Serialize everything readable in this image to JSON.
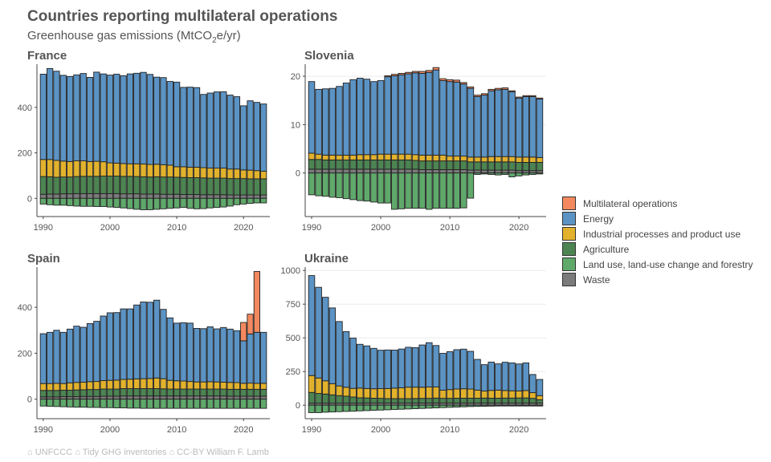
{
  "title": "Countries reporting multilateral operations",
  "subtitle_prefix": "Greenhouse gas emissions (MtCO",
  "subtitle_sub": "2",
  "subtitle_suffix": "e/yr)",
  "caption": "⌂ UNFCCC ⌂ Tidy GHG inventories ⌂ CC-BY William F. Lamb",
  "colors": {
    "Multilateral operations": "#F4895F",
    "Energy": "#5B93C4",
    "Industrial processes and product use": "#E2B22D",
    "Agriculture": "#4C8452",
    "Land use, land-use change and forestry": "#5FA96B",
    "Waste": "#7B7B7B"
  },
  "legend": [
    "Multilateral operations",
    "Energy",
    "Industrial processes and product use",
    "Agriculture",
    "Land use, land-use change and forestry",
    "Waste"
  ],
  "chart_data": [
    {
      "type": "bar",
      "stacked": true,
      "title": "France",
      "x_start": 1990,
      "xticks": [
        1990,
        2000,
        2010,
        2020
      ],
      "yticks": [
        0,
        200,
        400
      ],
      "ylim": [
        -80,
        590
      ],
      "grid": false,
      "series": [
        {
          "name": "Waste",
          "values": [
            18,
            19,
            19,
            20,
            20,
            21,
            21,
            21,
            21,
            21,
            21,
            21,
            20,
            20,
            20,
            19,
            19,
            19,
            18,
            18,
            18,
            17,
            17,
            17,
            16,
            16,
            16,
            16,
            15,
            15,
            15,
            15,
            15,
            15
          ]
        },
        {
          "name": "Agriculture",
          "values": [
            78,
            76,
            74,
            74,
            74,
            75,
            76,
            76,
            76,
            77,
            77,
            77,
            77,
            77,
            76,
            76,
            75,
            76,
            76,
            76,
            75,
            75,
            74,
            74,
            74,
            73,
            73,
            73,
            72,
            72,
            72,
            71,
            71,
            71
          ]
        },
        {
          "name": "Industrial processes and product use",
          "values": [
            75,
            76,
            74,
            70,
            68,
            69,
            68,
            65,
            66,
            63,
            58,
            57,
            56,
            55,
            56,
            56,
            55,
            55,
            54,
            52,
            46,
            47,
            46,
            46,
            45,
            44,
            44,
            44,
            42,
            42,
            38,
            38,
            36,
            33
          ]
        },
        {
          "name": "Energy",
          "values": [
            375,
            400,
            392,
            377,
            374,
            378,
            384,
            370,
            392,
            386,
            386,
            391,
            386,
            395,
            398,
            403,
            396,
            383,
            383,
            368,
            372,
            349,
            352,
            350,
            322,
            330,
            335,
            336,
            325,
            318,
            282,
            305,
            300,
            296
          ]
        },
        {
          "name": "Multilateral operations",
          "values": [
            0,
            0,
            0,
            0,
            0,
            0,
            0,
            0,
            0,
            0,
            0,
            0,
            0,
            0,
            0,
            0,
            0,
            0,
            0,
            0,
            0,
            0,
            0,
            0,
            0,
            0,
            0,
            0,
            0,
            0,
            0,
            0,
            0,
            0
          ]
        },
        {
          "name": "Land use, land-use change and forestry",
          "values": [
            -25,
            -28,
            -30,
            -30,
            -32,
            -34,
            -35,
            -35,
            -36,
            -36,
            -38,
            -40,
            -42,
            -45,
            -48,
            -50,
            -50,
            -48,
            -46,
            -44,
            -42,
            -40,
            -44,
            -46,
            -45,
            -42,
            -40,
            -38,
            -34,
            -28,
            -25,
            -22,
            -20,
            -20
          ]
        }
      ]
    },
    {
      "type": "bar",
      "stacked": true,
      "title": "Slovenia",
      "x_start": 1990,
      "xticks": [
        1990,
        2000,
        2010,
        2020
      ],
      "yticks": [
        0,
        10,
        20
      ],
      "ylim": [
        -9,
        22.5
      ],
      "grid": true,
      "series": [
        {
          "name": "Waste",
          "values": [
            0.8,
            0.8,
            0.8,
            0.8,
            0.8,
            0.8,
            0.8,
            0.8,
            0.8,
            0.8,
            0.8,
            0.8,
            0.8,
            0.8,
            0.8,
            0.8,
            0.7,
            0.7,
            0.7,
            0.7,
            0.7,
            0.7,
            0.7,
            0.6,
            0.6,
            0.6,
            0.6,
            0.6,
            0.6,
            0.6,
            0.5,
            0.5,
            0.5,
            0.5
          ]
        },
        {
          "name": "Agriculture",
          "values": [
            2.0,
            2.0,
            1.9,
            1.9,
            1.9,
            1.9,
            1.9,
            1.9,
            1.9,
            1.9,
            1.9,
            1.9,
            1.9,
            1.9,
            1.9,
            1.8,
            1.8,
            1.8,
            1.8,
            1.8,
            1.8,
            1.8,
            1.8,
            1.7,
            1.7,
            1.7,
            1.7,
            1.7,
            1.7,
            1.7,
            1.7,
            1.7,
            1.7,
            1.7
          ]
        },
        {
          "name": "Industrial processes and product use",
          "values": [
            1.3,
            1.1,
            1.0,
            1.0,
            1.0,
            1.0,
            1.0,
            1.1,
            1.1,
            1.1,
            1.2,
            1.2,
            1.2,
            1.2,
            1.2,
            1.2,
            1.2,
            1.2,
            1.2,
            1.2,
            1.0,
            1.0,
            1.0,
            1.0,
            1.0,
            1.0,
            1.1,
            1.1,
            1.1,
            1.1,
            1.1,
            1.1,
            1.1,
            1.0
          ]
        },
        {
          "name": "Energy",
          "values": [
            14.8,
            13.4,
            13.7,
            13.8,
            14.2,
            14.9,
            15.6,
            15.8,
            15.6,
            15.1,
            15.2,
            16.0,
            16.2,
            16.4,
            16.6,
            16.9,
            16.9,
            17.1,
            17.6,
            15.4,
            15.4,
            15.3,
            14.9,
            14.2,
            12.5,
            12.8,
            13.6,
            13.8,
            13.9,
            13.4,
            12.2,
            12.5,
            12.5,
            12.1
          ]
        },
        {
          "name": "Multilateral operations",
          "values": [
            0,
            0,
            0,
            0,
            0,
            0,
            0,
            0,
            0,
            0,
            0,
            0.2,
            0.3,
            0.3,
            0.3,
            0.3,
            0.4,
            0.4,
            0.5,
            0.4,
            0.4,
            0.4,
            0.3,
            0.3,
            0.3,
            0.3,
            0.3,
            0.3,
            0.3,
            0.2,
            0.2,
            0.2,
            0.2,
            0.2
          ]
        },
        {
          "name": "Land use, land-use change and forestry",
          "values": [
            -4.5,
            -4.7,
            -4.8,
            -5.0,
            -5.1,
            -5.3,
            -5.5,
            -5.7,
            -5.8,
            -6.0,
            -6.2,
            -6.2,
            -7.5,
            -7.4,
            -7.3,
            -7.3,
            -7.3,
            -7.5,
            -7.3,
            -7.3,
            -7.3,
            -7.3,
            -7.2,
            -5.2,
            -0.3,
            -0.2,
            -0.3,
            -0.4,
            -0.3,
            -0.8,
            -0.6,
            -0.4,
            -0.3,
            -0.2
          ]
        }
      ]
    },
    {
      "type": "bar",
      "stacked": true,
      "title": "Spain",
      "x_start": 1990,
      "xticks": [
        1990,
        2000,
        2010,
        2020
      ],
      "yticks": [
        0,
        200,
        400
      ],
      "ylim": [
        -85,
        575
      ],
      "grid": false,
      "series": [
        {
          "name": "Waste",
          "values": [
            10,
            10,
            10,
            11,
            11,
            11,
            12,
            12,
            12,
            13,
            13,
            13,
            14,
            14,
            14,
            14,
            14,
            14,
            14,
            14,
            14,
            14,
            14,
            14,
            14,
            14,
            14,
            14,
            13,
            13,
            13,
            13,
            13,
            13
          ]
        },
        {
          "name": "Agriculture",
          "values": [
            28,
            28,
            28,
            28,
            28,
            29,
            29,
            30,
            30,
            31,
            31,
            31,
            32,
            32,
            32,
            32,
            32,
            32,
            31,
            30,
            30,
            30,
            30,
            30,
            30,
            30,
            30,
            30,
            30,
            30,
            30,
            30,
            30,
            30
          ]
        },
        {
          "name": "Industrial processes and product use",
          "values": [
            30,
            30,
            31,
            29,
            32,
            33,
            33,
            34,
            35,
            37,
            38,
            39,
            40,
            41,
            42,
            43,
            44,
            46,
            44,
            38,
            36,
            35,
            33,
            31,
            31,
            32,
            31,
            30,
            30,
            29,
            26,
            27,
            26,
            26
          ]
        },
        {
          "name": "Energy",
          "values": [
            217,
            223,
            231,
            223,
            234,
            245,
            239,
            253,
            262,
            281,
            294,
            294,
            307,
            306,
            322,
            334,
            332,
            339,
            302,
            272,
            251,
            254,
            254,
            233,
            232,
            239,
            231,
            238,
            232,
            226,
            185,
            214,
            222,
            222
          ]
        },
        {
          "name": "Multilateral operations",
          "values": [
            0,
            0,
            0,
            0,
            0,
            0,
            0,
            0,
            0,
            0,
            0,
            0,
            0,
            0,
            0,
            0,
            0,
            0,
            0,
            0,
            0,
            0,
            0,
            0,
            0,
            0,
            0,
            0,
            0,
            0,
            80,
            86,
            265,
            0
          ]
        },
        {
          "name": "Land use, land-use change and forestry",
          "values": [
            -30,
            -31,
            -32,
            -33,
            -34,
            -35,
            -35,
            -36,
            -36,
            -37,
            -37,
            -38,
            -38,
            -39,
            -39,
            -40,
            -40,
            -40,
            -40,
            -40,
            -40,
            -40,
            -40,
            -40,
            -40,
            -40,
            -40,
            -40,
            -40,
            -40,
            -40,
            -40,
            -40,
            -40
          ]
        }
      ]
    },
    {
      "type": "bar",
      "stacked": true,
      "title": "Ukraine",
      "x_start": 1990,
      "xticks": [
        1990,
        2000,
        2010,
        2020
      ],
      "yticks": [
        0,
        250,
        500,
        750,
        1000
      ],
      "ylim": [
        -100,
        1025
      ],
      "grid": true,
      "series": [
        {
          "name": "Waste",
          "values": [
            15,
            15,
            15,
            15,
            15,
            15,
            15,
            15,
            16,
            16,
            16,
            16,
            16,
            16,
            16,
            16,
            16,
            16,
            16,
            16,
            16,
            16,
            16,
            16,
            16,
            16,
            16,
            16,
            16,
            16,
            16,
            16,
            16,
            16
          ]
        },
        {
          "name": "Agriculture",
          "values": [
            80,
            72,
            68,
            62,
            56,
            52,
            46,
            40,
            38,
            36,
            35,
            33,
            33,
            33,
            33,
            34,
            35,
            35,
            37,
            35,
            35,
            36,
            36,
            36,
            36,
            37,
            36,
            36,
            37,
            37,
            38,
            38,
            35,
            25
          ]
        },
        {
          "name": "Industrial processes and product use",
          "values": [
            125,
            115,
            98,
            82,
            72,
            66,
            64,
            72,
            70,
            70,
            72,
            75,
            78,
            80,
            85,
            84,
            82,
            84,
            82,
            60,
            65,
            68,
            70,
            68,
            60,
            52,
            58,
            60,
            56,
            54,
            52,
            55,
            42,
            30
          ]
        },
        {
          "name": "Energy",
          "values": [
            742,
            673,
            620,
            563,
            478,
            413,
            373,
            325,
            316,
            300,
            285,
            286,
            282,
            288,
            296,
            293,
            314,
            329,
            308,
            274,
            281,
            292,
            294,
            280,
            228,
            196,
            210,
            195,
            210,
            207,
            200,
            205,
            135,
            120
          ]
        },
        {
          "name": "Multilateral operations",
          "values": [
            0,
            0,
            0,
            0,
            0,
            0,
            0,
            0,
            0,
            0,
            0,
            0,
            0,
            0,
            0,
            0,
            0,
            0,
            0,
            0,
            0,
            0,
            0,
            0,
            0,
            0,
            0,
            0,
            0,
            0,
            0,
            0,
            0,
            0
          ]
        },
        {
          "name": "Land use, land-use change and forestry",
          "values": [
            -55,
            -55,
            -52,
            -50,
            -48,
            -46,
            -45,
            -42,
            -40,
            -38,
            -36,
            -34,
            -32,
            -30,
            -28,
            -26,
            -24,
            -22,
            -20,
            -18,
            -16,
            -14,
            -12,
            -10,
            -9,
            -8,
            -7,
            -6,
            -6,
            -6,
            -6,
            -6,
            -6,
            -6
          ]
        }
      ]
    }
  ]
}
